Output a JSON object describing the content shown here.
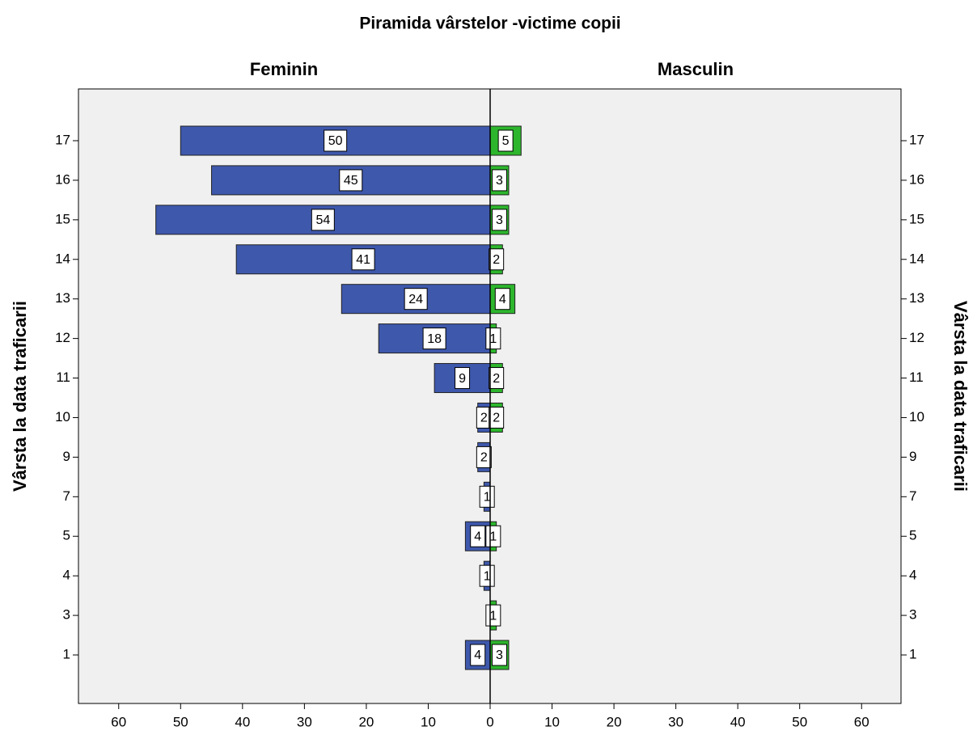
{
  "chart_data": {
    "type": "pyramid",
    "title": "Piramida vârstelor -victime copii",
    "y_label": "Vârsta la data traficarii",
    "categories": [
      1,
      3,
      4,
      5,
      7,
      9,
      10,
      11,
      12,
      13,
      14,
      15,
      16,
      17
    ],
    "series": [
      {
        "name": "Feminin",
        "color": "#3e58ac",
        "values": [
          4,
          null,
          1,
          4,
          1,
          2,
          2,
          9,
          18,
          24,
          41,
          54,
          45,
          50
        ]
      },
      {
        "name": "Masculin",
        "color": "#2db62d",
        "values": [
          3,
          1,
          null,
          1,
          null,
          null,
          2,
          2,
          1,
          4,
          2,
          3,
          3,
          5
        ]
      }
    ],
    "xlim": [
      0,
      66.5
    ],
    "xticks": [
      0,
      10,
      20,
      30,
      40,
      50,
      60
    ]
  }
}
